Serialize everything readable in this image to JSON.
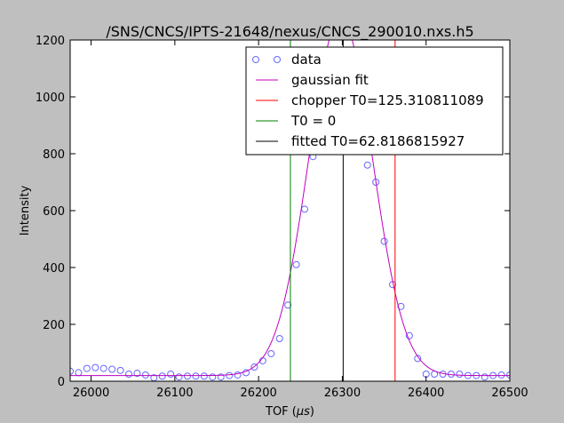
{
  "chart_data": {
    "type": "scatter",
    "title": "/SNS/CNCS/IPTS-21648/nexus/CNCS_290010.nxs.h5",
    "xlabel_prefix": "TOF (",
    "xlabel_unit": "μs",
    "xlabel_suffix": ")",
    "ylabel": "Intensity",
    "xlim": [
      25975,
      26500
    ],
    "ylim": [
      0,
      1200
    ],
    "xticks": [
      26000,
      26100,
      26200,
      26300,
      26400,
      26500
    ],
    "yticks": [
      0,
      200,
      400,
      600,
      800,
      1000,
      1200
    ],
    "grid": false,
    "legend_position": "top-right",
    "series": [
      {
        "name": "data",
        "kind": "markers",
        "color": "#6666ff",
        "x": [
          25975,
          25985,
          25995,
          26005,
          26015,
          26025,
          26035,
          26045,
          26055,
          26065,
          26075,
          26085,
          26095,
          26105,
          26115,
          26125,
          26135,
          26145,
          26155,
          26165,
          26175,
          26185,
          26195,
          26205,
          26215,
          26225,
          26235,
          26245,
          26255,
          26265,
          26330,
          26340,
          26350,
          26360,
          26370,
          26380,
          26390,
          26400,
          26410,
          26420,
          26430,
          26440,
          26450,
          26460,
          26470,
          26480,
          26490,
          26500
        ],
        "y": [
          35,
          30,
          45,
          48,
          45,
          42,
          38,
          25,
          28,
          22,
          12,
          18,
          25,
          15,
          18,
          18,
          18,
          15,
          15,
          20,
          22,
          30,
          50,
          72,
          97,
          150,
          268,
          410,
          605,
          790,
          760,
          700,
          492,
          340,
          263,
          160,
          80,
          25,
          25,
          25,
          25,
          25,
          20,
          20,
          15,
          20,
          22,
          22
        ]
      },
      {
        "name": "gaussian fit",
        "kind": "gaussian",
        "color": "#bf00bf",
        "amplitude": 1260,
        "center": 26298,
        "sigma": 38,
        "baseline": 20
      },
      {
        "name": "chopper T0=125.310811089",
        "kind": "vline",
        "color": "#ff0000",
        "x": 26363
      },
      {
        "name": "T0 = 0",
        "kind": "vline",
        "color": "#008000",
        "x": 26238
      },
      {
        "name": "fitted T0=62.8186815927",
        "kind": "vline",
        "color": "#000000",
        "x": 26301
      }
    ]
  }
}
